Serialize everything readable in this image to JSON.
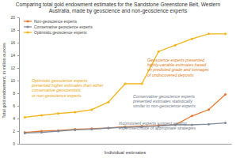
{
  "chart_data": {
    "type": "line",
    "title": "Comparing total gold endowment estimates for the Sandstone Greenstone Belt, Western Australia, made by geoscience and non-geoscience experts",
    "x_label": "Individual estimates",
    "y_label": "Total gold endowment, in million ounces",
    "categories": [
      null,
      null,
      null,
      null,
      null,
      null,
      null,
      null,
      null,
      null,
      null,
      null,
      null
    ],
    "series": [
      {
        "name": "Non-geoscience experts",
        "color": "#e8762d",
        "marker": "circle",
        "values": [
          1.8,
          2.0,
          2.1,
          2.3,
          2.4,
          2.5,
          2.7,
          2.8,
          2.9,
          3.0,
          4.4,
          5.4,
          7.8
        ]
      },
      {
        "name": "Conservative geoscience experts",
        "color": "#7f8b9c",
        "marker": "circle",
        "values": [
          1.7,
          1.8,
          2.0,
          2.2,
          2.3,
          2.5,
          2.6,
          2.7,
          2.8,
          3.0,
          3.0,
          3.1,
          3.3
        ]
      },
      {
        "name": "Optimistic geoscience experts",
        "color": "#f2b51a",
        "marker": "circle",
        "values": [
          4.2,
          4.5,
          4.8,
          5.0,
          5.4,
          6.6,
          9.5,
          9.5,
          14.6,
          15.6,
          16.6,
          17.4,
          17.4
        ]
      }
    ],
    "ylim": [
      0,
      20
    ],
    "yticks": [
      0,
      2,
      4,
      6,
      8,
      10,
      12,
      14,
      16,
      18,
      20
    ],
    "grid": false,
    "legend": "upper left",
    "annotations": [
      {
        "lines": [
          "Geoscience experts presented",
          "highly-variable estimates based",
          "on predicted grade and tonnages",
          "of undiscovered deposits"
        ],
        "color": "#e07b1a"
      },
      {
        "lines": [
          "Optimistic geoscience experts",
          "presented higher estimates than either",
          "conservative geoscientists",
          "or non-geoscience experts"
        ],
        "color": "#e9a30f"
      },
      {
        "lines": [
          "Conservative geoscience experts",
          "presented estimates statistically",
          "similar to non-geoscience experts"
        ],
        "color": "#6f7886"
      },
      {
        "lines": [
          "Inconsistent experts suggest varying",
          "expertise/choice of appropriate strategies"
        ],
        "color": "#6f7886"
      }
    ]
  }
}
